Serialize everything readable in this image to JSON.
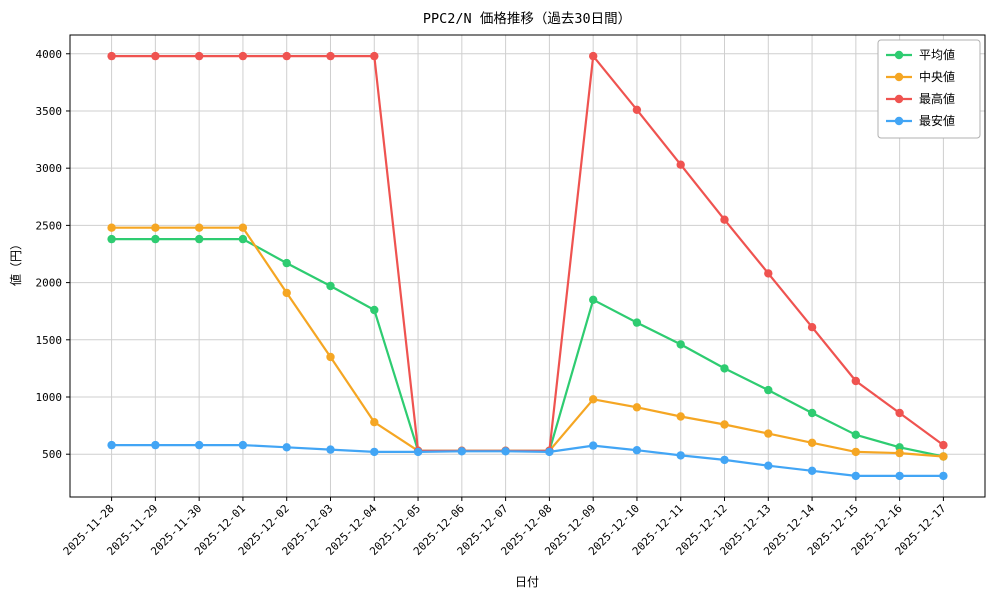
{
  "chart_data": {
    "type": "line",
    "title": "PPC2/N 価格推移（過去30日間）",
    "xlabel": "日付",
    "ylabel": "値（円）",
    "grid": true,
    "legend_position": "top-right",
    "marker": "circle",
    "ylim": [
      126,
      4164
    ],
    "yticks": [
      500,
      1000,
      1500,
      2000,
      2500,
      3000,
      3500,
      4000
    ],
    "categories": [
      "2025-11-28",
      "2025-11-29",
      "2025-11-30",
      "2025-12-01",
      "2025-12-02",
      "2025-12-03",
      "2025-12-04",
      "2025-12-05",
      "2025-12-06",
      "2025-12-07",
      "2025-12-08",
      "2025-12-09",
      "2025-12-10",
      "2025-12-11",
      "2025-12-12",
      "2025-12-13",
      "2025-12-14",
      "2025-12-15",
      "2025-12-16",
      "2025-12-17"
    ],
    "series": [
      {
        "name": "平均値",
        "color": "#2ecc71",
        "values": [
          2380,
          2380,
          2380,
          2380,
          2170,
          1970,
          1760,
          530,
          530,
          530,
          530,
          1850,
          1650,
          1460,
          1250,
          1060,
          860,
          670,
          560,
          480
        ]
      },
      {
        "name": "中央値",
        "color": "#f5a623",
        "values": [
          2480,
          2480,
          2480,
          2480,
          1910,
          1350,
          780,
          530,
          530,
          530,
          530,
          980,
          910,
          830,
          760,
          680,
          600,
          520,
          510,
          480
        ]
      },
      {
        "name": "最高値",
        "color": "#ef5350",
        "values": [
          3980,
          3980,
          3980,
          3980,
          3980,
          3980,
          3980,
          530,
          530,
          530,
          530,
          3980,
          3510,
          3030,
          2550,
          2080,
          1610,
          1140,
          860,
          580
        ]
      },
      {
        "name": "最安値",
        "color": "#42a5f5",
        "values": [
          580,
          580,
          580,
          580,
          560,
          540,
          520,
          520,
          525,
          525,
          520,
          575,
          535,
          490,
          450,
          400,
          355,
          310,
          310,
          310
        ]
      }
    ]
  }
}
